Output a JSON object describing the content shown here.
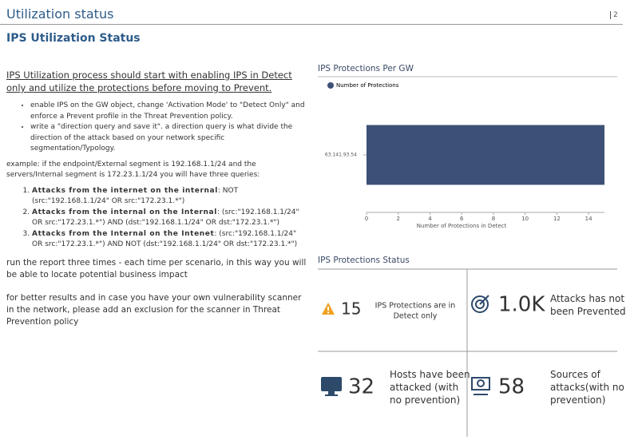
{
  "header": {
    "title": "Utilization status",
    "page": "2",
    "subtitle": "IPS Utilization Status"
  },
  "left": {
    "intro": "IPS Utilization process should start with enabling IPS in Detect only and utilize the protections before moving to Prevent.",
    "bullets": [
      "enable IPS on the GW object, change 'Activation Mode' to \"Detect Only\" and enforce a Prevent profile in the Threat Prevention policy.",
      "write a \"direction query and save it\". a direction query is what divide the direction of the attack based on your network specific segmentation/Typology."
    ],
    "example": "example: if the endpoint/External segment is 192.168.1.1/24 and the servers/Internal segment is 172.23.1.1/24 you will have three queries:",
    "queries": [
      {
        "bold": "Attacks from the internet on the internal",
        "text": ": NOT (src:\"192.168.1.1/24\" OR src:\"172.23.1.*\")"
      },
      {
        "bold": "Attacks from the internal on the Internal",
        "text": ": (src:\"192.168.1.1/24\" OR src:\"172.23.1.*\") AND (dst:\"192.168.1.1/24\" OR dst:\"172.23.1.*\")"
      },
      {
        "bold": "Attacks from the Internal on the Intenet",
        "text": ": (src:\"192.168.1.1/24\" OR src:\"172.23.1.*\") AND NOT  (dst:\"192.168.1.1/24\" OR dst:\"172.23.1.*\")"
      }
    ],
    "run_note": "run the report three times - each time per scenario, in this way you will be able to locate potential business impact",
    "scanner_note": "for better results and in case you have your own vulnerability scanner in the network, please add an exclusion for the scanner in Threat Prevention policy"
  },
  "chart_data": {
    "type": "hbar",
    "title": "IPS Protections Per GW",
    "categories": [
      "63.141.93.54"
    ],
    "series": [
      {
        "name": "Number of Protections",
        "color": "#3d5075",
        "values": [
          15
        ]
      }
    ],
    "xlabel": "Number of Protections in Detect",
    "xlim": [
      0,
      15
    ],
    "xticks": [
      0,
      2,
      4,
      6,
      8,
      10,
      12,
      14
    ]
  },
  "status": {
    "title": "IPS Protections Status",
    "tiles": [
      {
        "value": "15",
        "label": "IPS Protections are in Detect only"
      },
      {
        "value": "1.0K",
        "label": "Attacks has not been Prevented"
      },
      {
        "value": "32",
        "label": "Hosts have been attacked (with no prevention)"
      },
      {
        "value": "58",
        "label": "Sources of attacks(with no prevention)"
      }
    ]
  }
}
